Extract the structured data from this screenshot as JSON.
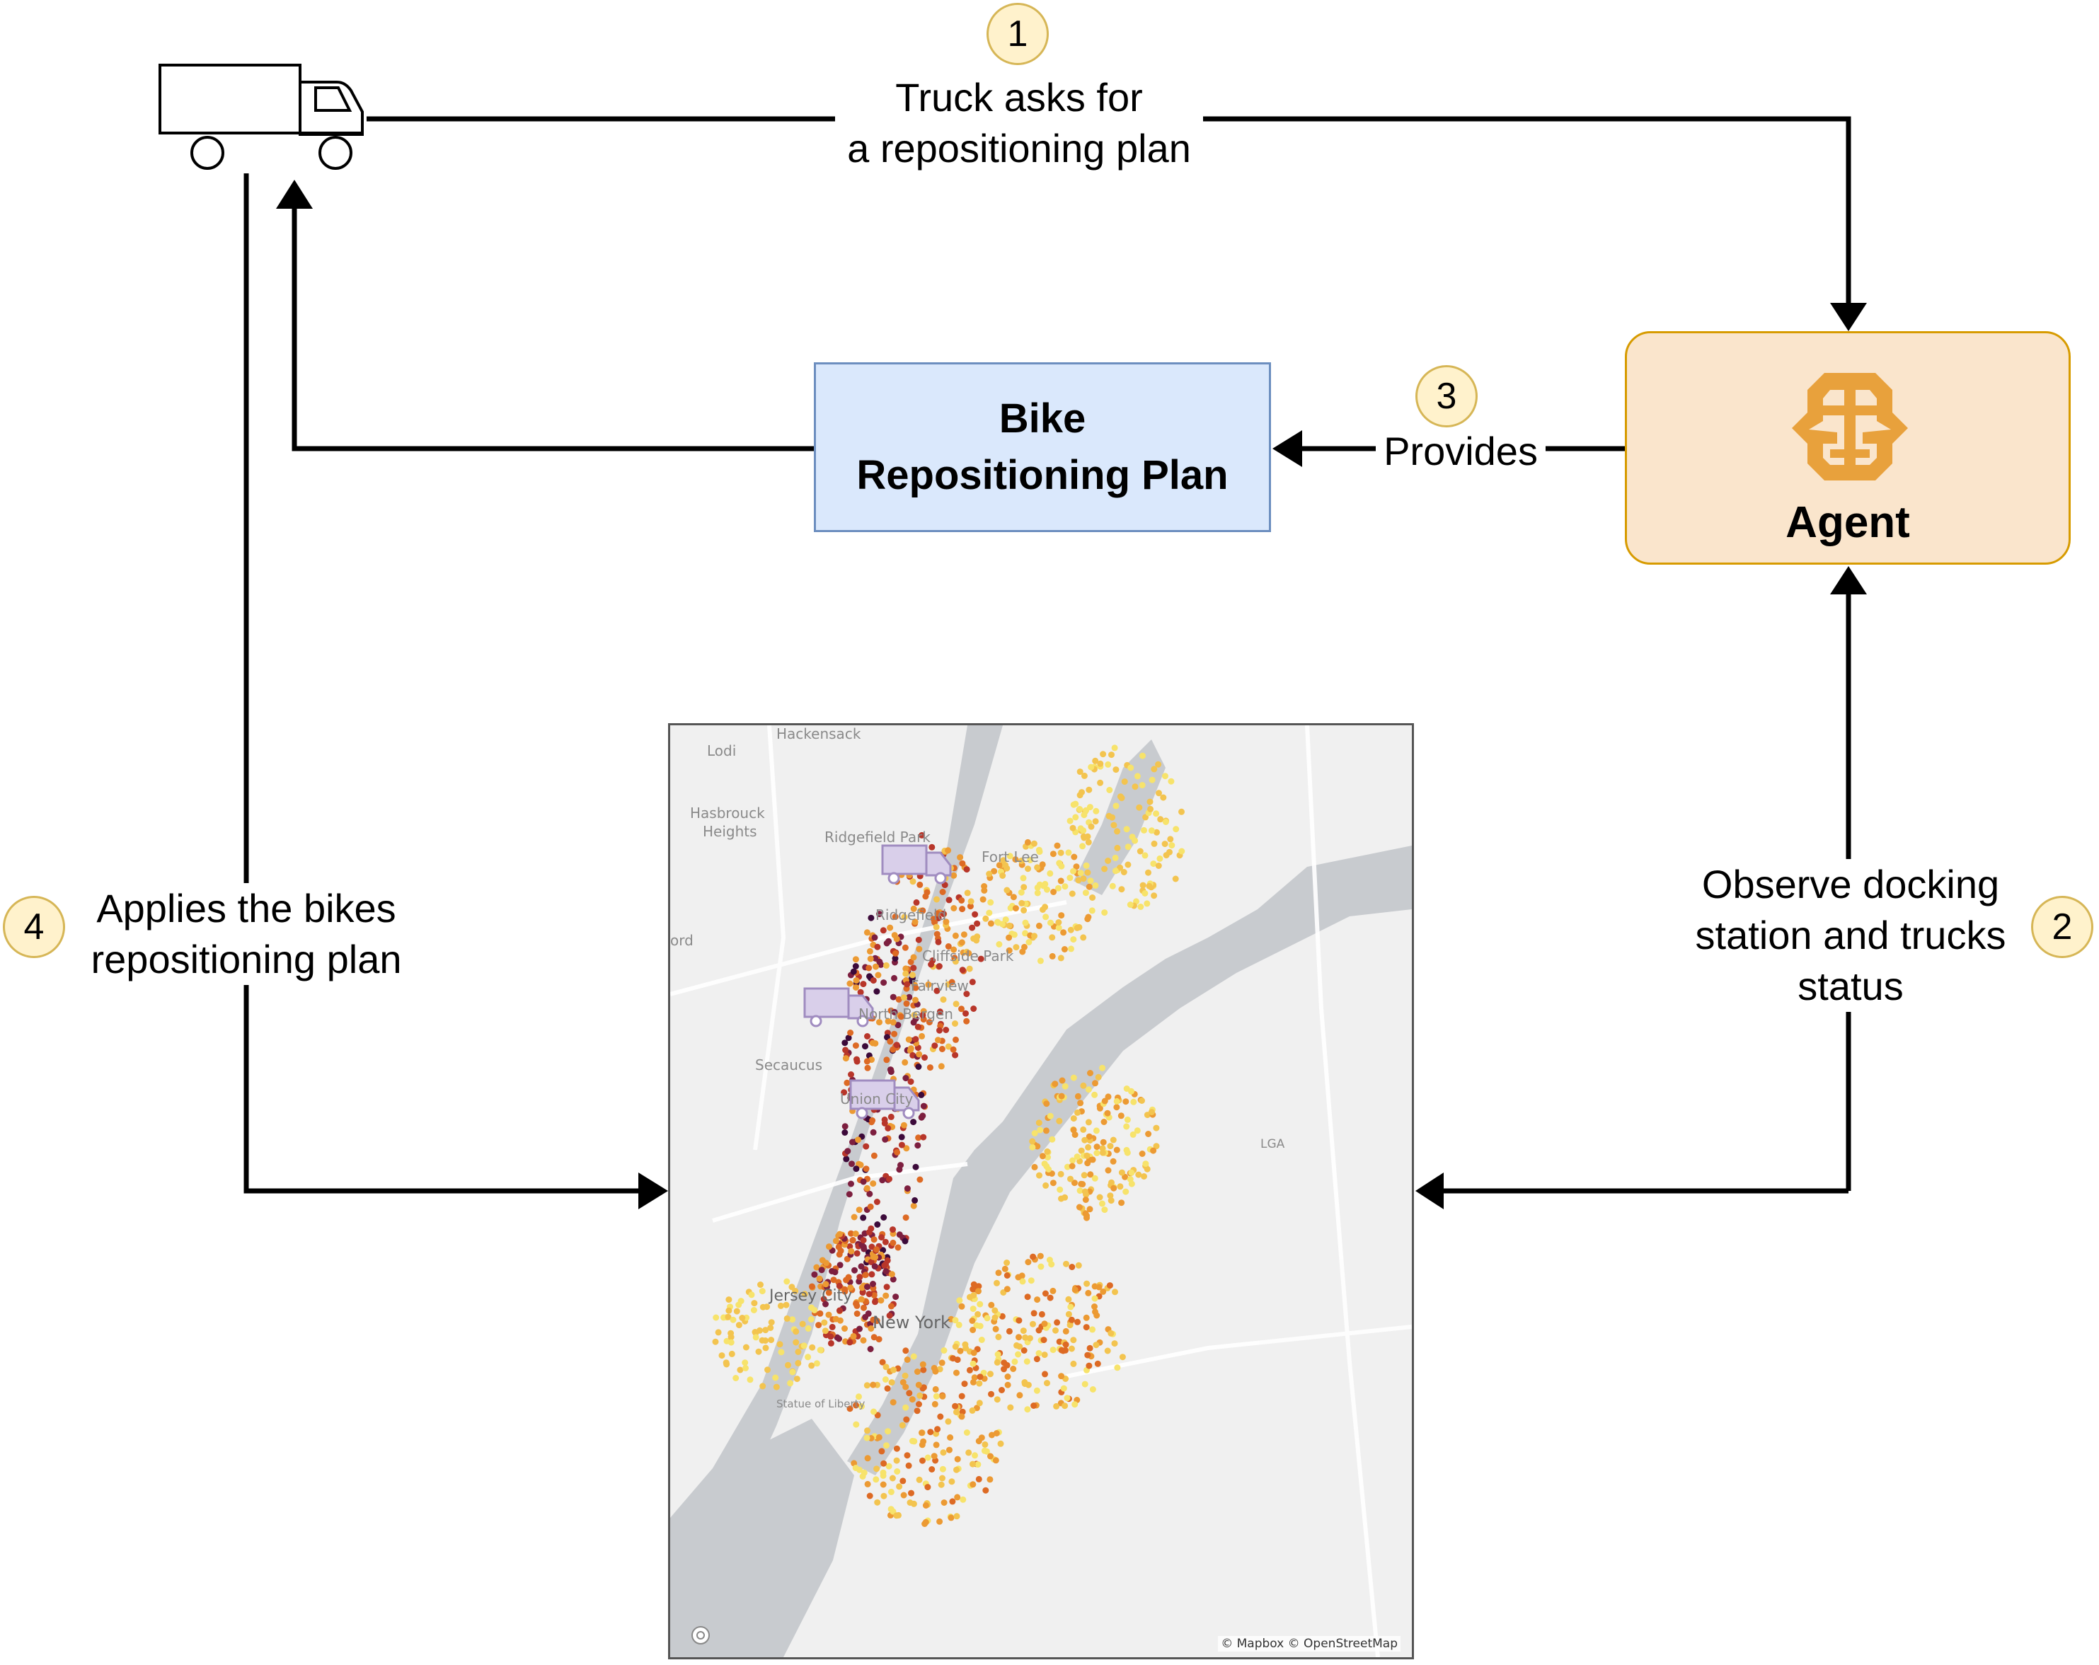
{
  "steps": [
    {
      "number": "1",
      "label_lines": [
        "Truck asks for",
        "a repositioning plan"
      ]
    },
    {
      "number": "2",
      "label_lines": [
        "Observe docking",
        "station and trucks",
        "status"
      ]
    },
    {
      "number": "3",
      "label_lines": [
        "Provides"
      ]
    },
    {
      "number": "4",
      "label_lines": [
        "Applies the bikes",
        "repositioning plan"
      ]
    }
  ],
  "plan_box": {
    "lines": [
      "Bike",
      "Repositioning Plan"
    ]
  },
  "agent": {
    "label": "Agent",
    "icon": "brain-icon",
    "accent": "#e8a13c"
  },
  "colors": {
    "plan_fill": "#dae8fc",
    "plan_stroke": "#6c8ebf",
    "agent_fill": "#fae5cc",
    "agent_stroke": "#d79b00",
    "badge_fill": "#fff2cc",
    "badge_stroke": "#d6b656",
    "truck_icon_purple": "#a08cc0"
  },
  "map": {
    "place_labels": [
      "Hackensack",
      "Lodi",
      "Hasbrouck",
      "Heights",
      "Ridgefield Park",
      "Fort Lee",
      "Ridgefield",
      "Cliffside Park",
      "Fairview",
      "North Bergen",
      "Secaucus",
      "Union City",
      "LGA",
      "Jersey City",
      "New York",
      "Statue of Liberty",
      "ord"
    ],
    "attribution": "© Mapbox © OpenStreetMap",
    "station_palette": [
      "#f7e36b",
      "#f3c44f",
      "#ec9a33",
      "#dd6a24",
      "#b8362a",
      "#7d1f3f",
      "#3c0a3a"
    ],
    "truck_icons": 3
  }
}
